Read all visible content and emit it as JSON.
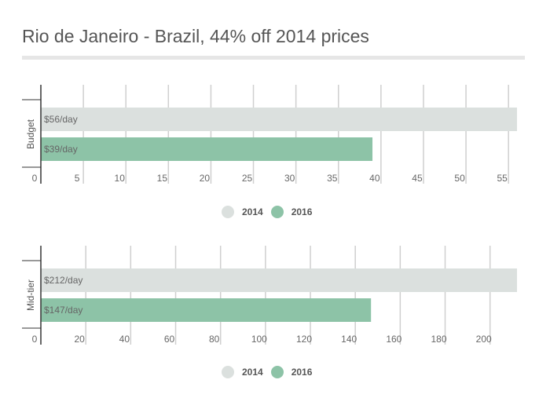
{
  "title": "Rio de Janeiro - Brazil, 44% off 2014 prices",
  "colors": {
    "2014": "#dbe0de",
    "2016": "#8dc3a7",
    "grid": "#cfcfcf",
    "axis": "#333333"
  },
  "legend": [
    {
      "name": "2014",
      "color": "#dbe0de"
    },
    {
      "name": "2016",
      "color": "#8dc3a7"
    }
  ],
  "chart_data": [
    {
      "type": "bar",
      "orientation": "horizontal",
      "category": "Budget",
      "series": [
        {
          "name": "2014",
          "values": [
            56
          ],
          "label": "$56/day"
        },
        {
          "name": "2016",
          "values": [
            39
          ],
          "label": "$39/day"
        }
      ],
      "xticks": [
        0,
        5,
        10,
        15,
        20,
        25,
        30,
        35,
        40,
        45,
        50,
        55
      ],
      "xlim": [
        0,
        56
      ],
      "grid": true,
      "legend_position": "bottom"
    },
    {
      "type": "bar",
      "orientation": "horizontal",
      "category": "Mid-tier",
      "series": [
        {
          "name": "2014",
          "values": [
            212
          ],
          "label": "$212/day"
        },
        {
          "name": "2016",
          "values": [
            147
          ],
          "label": "$147/day"
        }
      ],
      "xticks": [
        0,
        20,
        40,
        60,
        80,
        100,
        120,
        140,
        160,
        180,
        200
      ],
      "xlim": [
        0,
        212
      ],
      "grid": true,
      "legend_position": "bottom"
    }
  ]
}
